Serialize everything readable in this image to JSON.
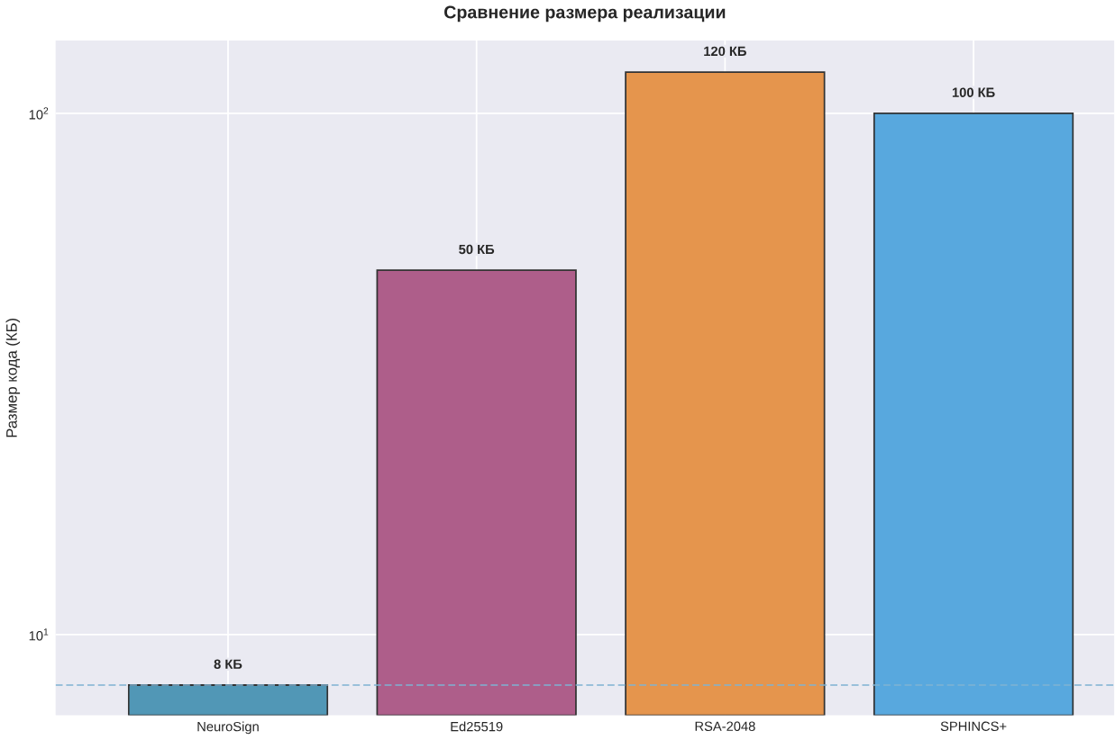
{
  "chart_data": {
    "type": "bar",
    "title": "Сравнение размера реализации",
    "ylabel": "Размер кода (КБ)",
    "categories": [
      "NeuroSign",
      "Ed25519",
      "RSA-2048",
      "SPHINCS+"
    ],
    "values": [
      8,
      50,
      120,
      100
    ],
    "value_labels": [
      "8 КБ",
      "50 КБ",
      "120 КБ",
      "100 КБ"
    ],
    "colors": [
      "#5197b6",
      "#ae5e8a",
      "#e5954d",
      "#58a8de"
    ],
    "log": "y",
    "ylim": [
      7.0,
      138
    ],
    "yticks": [
      {
        "value": 10,
        "label": "10$^{1}$"
      },
      {
        "value": 100,
        "label": "10$^{2}$"
      }
    ],
    "ref_lines": [
      {
        "axis": "y",
        "value": 8,
        "color": "#7fb3d2",
        "line_style": "dashed"
      }
    ],
    "grid": true
  }
}
